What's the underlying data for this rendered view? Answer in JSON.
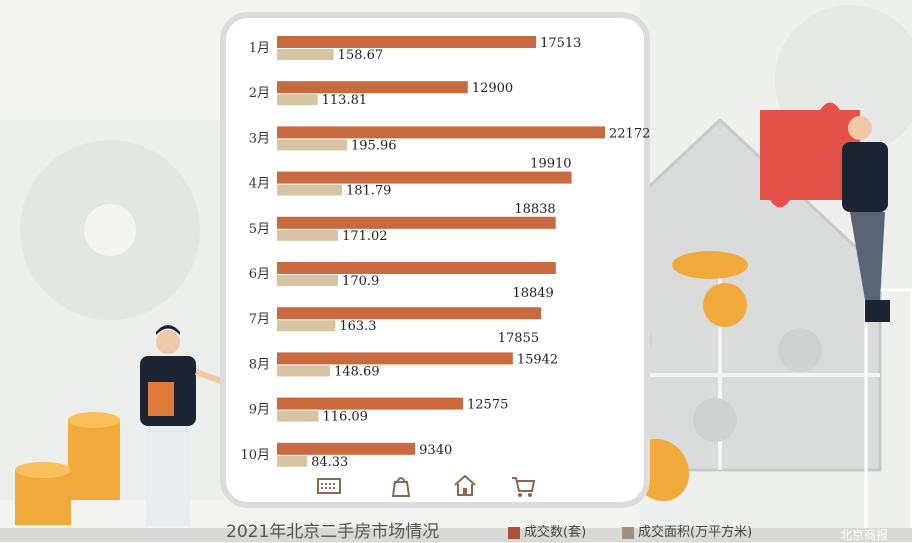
{
  "chart_data": {
    "type": "bar",
    "orientation": "horizontal",
    "title": "2021年北京二手房市场情况",
    "categories": [
      "1月",
      "2月",
      "3月",
      "4月",
      "5月",
      "6月",
      "7月",
      "8月",
      "9月",
      "10月"
    ],
    "series": [
      {
        "name": "成交数(套)",
        "color": "#c8693f",
        "values": [
          17513,
          12900,
          22172,
          19910,
          18838,
          18849,
          17855,
          15942,
          12575,
          9340
        ]
      },
      {
        "name": "成交面积(万平方米)",
        "color": "#d8c3a2",
        "values": [
          158.67,
          113.81,
          195.96,
          181.79,
          171.02,
          170.9,
          163.3,
          148.69,
          116.09,
          84.33
        ]
      }
    ],
    "value_labels": [
      [
        "17513",
        "12900",
        "22172",
        "19910",
        "18838",
        "18849",
        "17855",
        "15942",
        "12575",
        "9340"
      ],
      [
        "158.67",
        "113.81",
        "195.96",
        "181.79",
        "171.02",
        "170.9",
        "163.3",
        "148.69",
        "116.09",
        "84.33"
      ]
    ]
  },
  "caption": {
    "title": "2021年北京二手房市场情况",
    "legend_count": "成交数(套)",
    "legend_area": "成交面积(万平方米)"
  },
  "tabbar": {
    "icons": [
      "keyboard-icon",
      "bag-icon",
      "home-icon",
      "cart-icon"
    ]
  },
  "corner_text": "北京商报"
}
